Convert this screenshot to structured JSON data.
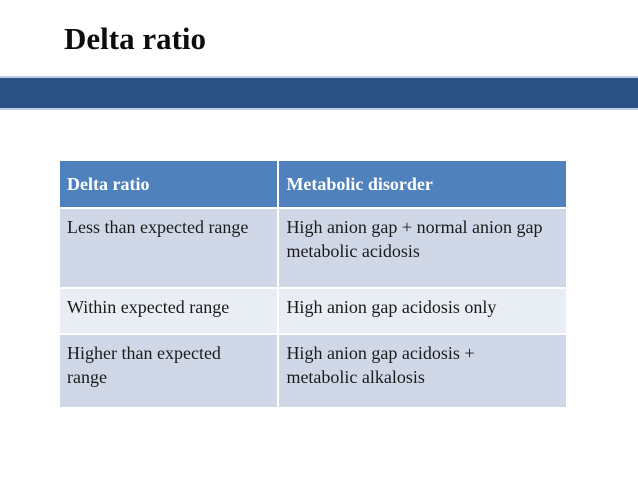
{
  "slide": {
    "title": "Delta ratio",
    "colors": {
      "title_text": "#0d0d0d",
      "divider_band": "#2b5183",
      "divider_band_edge": "#bccde4",
      "table_header_bg": "#4f81bd",
      "table_header_text": "#ffffff",
      "table_row_odd_bg": "#d0d8e8",
      "table_row_even_bg": "#e9edf4",
      "table_body_text": "#1a1a1a"
    }
  },
  "table": {
    "headers": [
      "Delta ratio",
      "Metabolic disorder"
    ],
    "rows": [
      {
        "delta_ratio": "Less than expected range",
        "metabolic_disorder": "High anion gap + normal anion gap\nmetabolic acidosis"
      },
      {
        "delta_ratio": "Within expected range",
        "metabolic_disorder": "High anion gap acidosis only"
      },
      {
        "delta_ratio": "Higher than expected\nrange",
        "metabolic_disorder": "High anion gap acidosis +\nmetabolic alkalosis"
      }
    ]
  }
}
